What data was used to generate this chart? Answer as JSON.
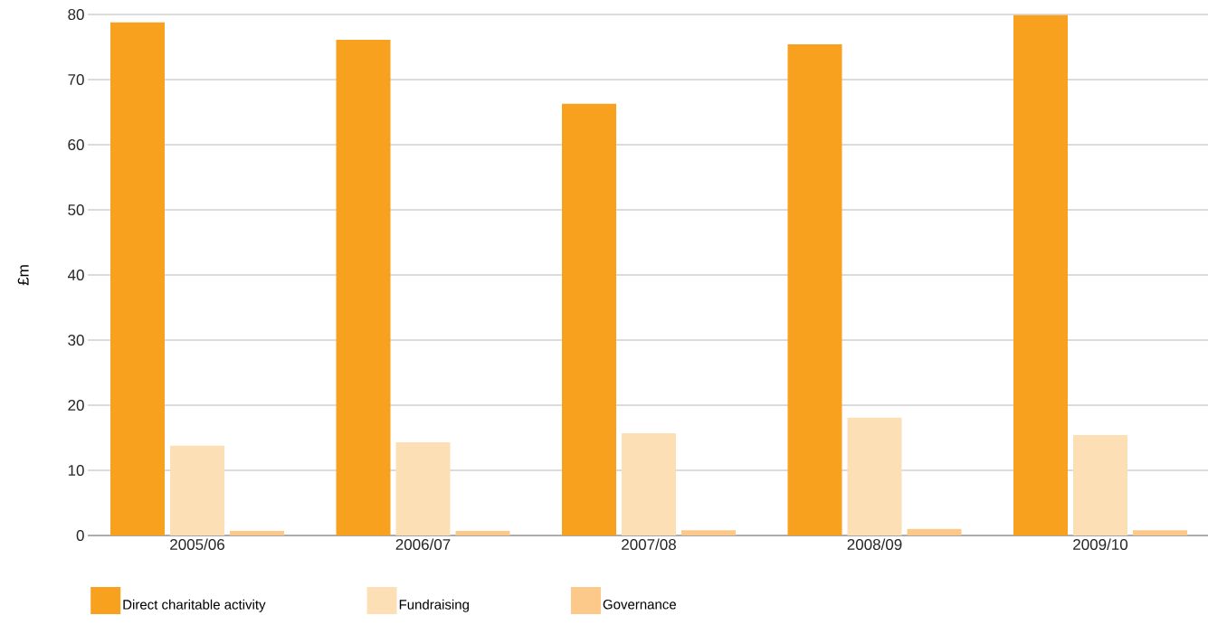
{
  "chart_data": {
    "type": "bar",
    "ylabel": "£m",
    "categories": [
      "2005/06",
      "2006/07",
      "2007/08",
      "2008/09",
      "2009/10"
    ],
    "series": [
      {
        "name": "Direct charitable activity",
        "color": "#f7a11f",
        "values": [
          78.8,
          76.1,
          66.3,
          75.4,
          79.9
        ]
      },
      {
        "name": "Fundraising",
        "color": "#fddfb5",
        "values": [
          13.8,
          14.3,
          15.7,
          18.1,
          15.4
        ]
      },
      {
        "name": "Governance",
        "color": "#fdc98a",
        "values": [
          0.7,
          0.7,
          0.8,
          1.0,
          0.8
        ]
      }
    ],
    "ylim": [
      0,
      80
    ],
    "yticks": [
      0,
      10,
      20,
      30,
      40,
      50,
      60,
      70,
      80
    ],
    "grid": "y",
    "legend": "bottom"
  }
}
